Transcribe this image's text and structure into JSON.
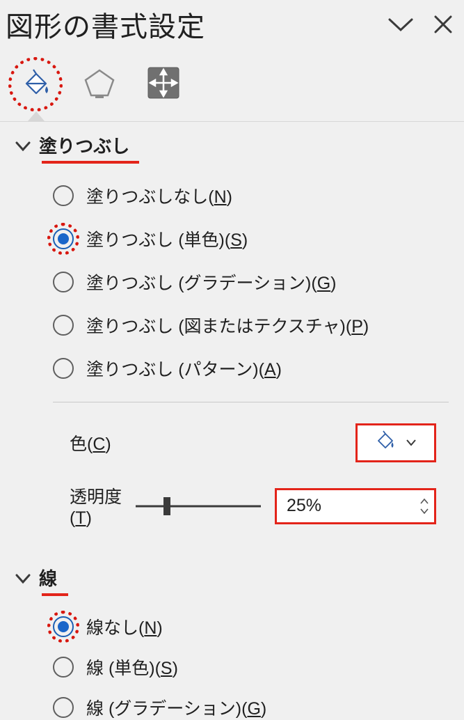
{
  "colors": {
    "panel_bg": "#f0f0f0",
    "text": "#202020",
    "highlight_border": "#e3241a",
    "dotted_ring": "#d8170f",
    "accent_blue": "#1a66c9",
    "icon_blue": "#2f5fa8",
    "icon_gray": "#6f6f6f",
    "size_tab_bg": "#707070",
    "divider": "#c8c8c8"
  },
  "panel": {
    "title": "図形の書式設定",
    "collapse_icon": "chevron-down",
    "close_icon": "x"
  },
  "tabs": {
    "items": [
      {
        "name": "fill-line-tab",
        "icon": "paint-bucket",
        "active": true
      },
      {
        "name": "effects-tab",
        "icon": "pentagon",
        "active": false
      },
      {
        "name": "size-tab",
        "icon": "size-arrows",
        "active": false
      }
    ]
  },
  "fill_section": {
    "title": "塗りつぶし",
    "expanded": true,
    "options": [
      {
        "label_pre": "塗りつぶしなし(",
        "key": "N",
        "label_post": ")",
        "checked": false,
        "ringed": false
      },
      {
        "label_pre": "塗りつぶし (単色)(",
        "key": "S",
        "label_post": ")",
        "checked": true,
        "ringed": true
      },
      {
        "label_pre": "塗りつぶし (グラデーション)(",
        "key": "G",
        "label_post": ")",
        "checked": false,
        "ringed": false
      },
      {
        "label_pre": "塗りつぶし (図またはテクスチャ)(",
        "key": "P",
        "label_post": ")",
        "checked": false,
        "ringed": false
      },
      {
        "label_pre": "塗りつぶし (パターン)(",
        "key": "A",
        "label_post": ")",
        "checked": false,
        "ringed": false
      }
    ],
    "color": {
      "label_pre": "色(",
      "key": "C",
      "label_post": ")",
      "picker_icon": "paint-bucket-small"
    },
    "transparency": {
      "label_pre": "透明度(",
      "key": "T",
      "label_post": ")",
      "value_text": "25%",
      "value_percent": 25,
      "slider": {
        "min": 0,
        "max": 100,
        "thumb_percent": 25
      }
    }
  },
  "line_section": {
    "title": "線",
    "expanded": true,
    "options": [
      {
        "label_pre": "線なし(",
        "key": "N",
        "label_post": ")",
        "checked": true,
        "ringed": true
      },
      {
        "label_pre": "線 (単色)(",
        "key": "S",
        "label_post": ")",
        "checked": false,
        "ringed": false
      },
      {
        "label_pre": "線 (グラデーション)(",
        "key": "G",
        "label_post": ")",
        "checked": false,
        "ringed": false
      }
    ]
  }
}
